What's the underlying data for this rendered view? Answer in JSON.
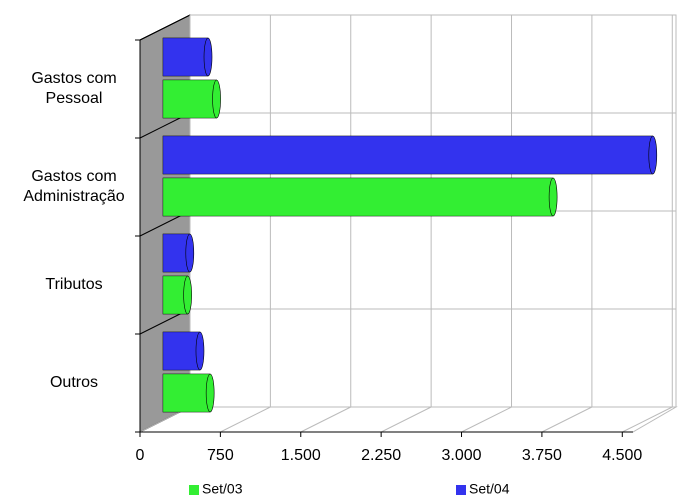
{
  "chart_data": {
    "type": "bar3d",
    "categories": [
      "Gastos com Pessoal",
      "Gastos com Administração",
      "Tributos",
      "Outros"
    ],
    "series": [
      {
        "name": "Set/03",
        "color": "#33ee33",
        "values": [
          500,
          3640,
          230,
          440
        ]
      },
      {
        "name": "Set/04",
        "color": "#3333ee",
        "values": [
          420,
          4570,
          250,
          345
        ]
      }
    ],
    "xlim": [
      0,
      4600
    ],
    "xticks": [
      0,
      750,
      {
        "value": 1500,
        "label": "1.500"
      },
      {
        "value": 2250,
        "label": "2.250"
      },
      {
        "value": 3000,
        "label": "3.000"
      },
      {
        "value": 3750,
        "label": "3.750"
      },
      {
        "value": 4500,
        "label": "4.500"
      }
    ],
    "grid": true
  }
}
